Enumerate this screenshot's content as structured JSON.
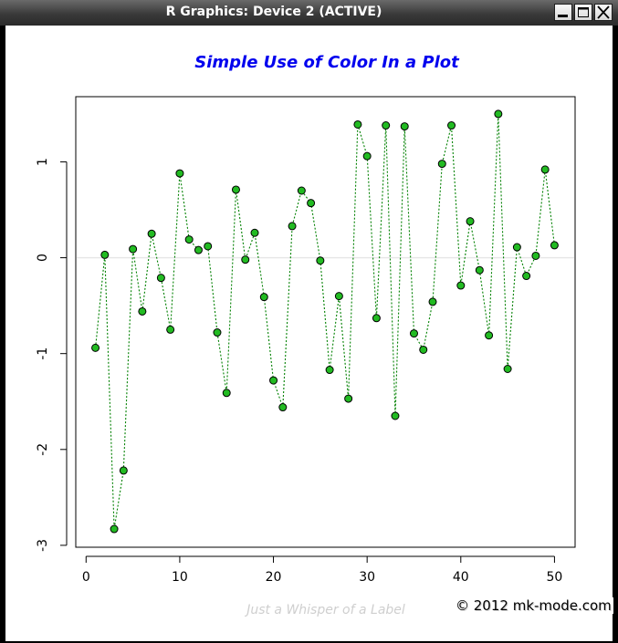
{
  "window": {
    "title": "R Graphics: Device 2 (ACTIVE)",
    "buttons": [
      "minimize",
      "maximize",
      "close"
    ]
  },
  "watermark": "© 2012 mk-mode.com",
  "colors": {
    "title": "#0000ee",
    "xlabel": "#cfcfcf",
    "line": "#008000",
    "point_fill": "#22bb22",
    "point_border": "#000000",
    "hline": "#e6e6e6"
  },
  "chart_data": {
    "type": "line",
    "title": "Simple Use of Color In a Plot",
    "xlabel": "Just a Whisper of a Label",
    "ylabel": "",
    "xlim": [
      -1.1,
      52.2
    ],
    "ylim": [
      -3.02,
      1.68
    ],
    "xticks": [
      0,
      10,
      20,
      30,
      40,
      50
    ],
    "yticks": [
      -3,
      -2,
      -1,
      0,
      1
    ],
    "hline": 0,
    "line_style": "dotted",
    "marker": "filled-circle",
    "series": [
      {
        "x": [
          1,
          2,
          3,
          4,
          5,
          6,
          7,
          8,
          9,
          10,
          11,
          12,
          13,
          14,
          15,
          16,
          17,
          18,
          19,
          20,
          21,
          22,
          23,
          24,
          25,
          26,
          27,
          28,
          29,
          30,
          31,
          32,
          33,
          34,
          35,
          36,
          37,
          38,
          39,
          40,
          41,
          42,
          43,
          44,
          45,
          46,
          47,
          48,
          49,
          50
        ],
        "y": [
          -0.94,
          0.03,
          -2.83,
          -2.22,
          0.09,
          -0.56,
          0.25,
          -0.21,
          -0.75,
          0.88,
          0.19,
          0.08,
          0.12,
          -0.78,
          -1.41,
          0.71,
          -0.02,
          0.26,
          -0.41,
          -1.28,
          -1.56,
          0.33,
          0.7,
          0.57,
          -0.03,
          -1.17,
          -0.4,
          -1.47,
          1.39,
          1.06,
          -0.63,
          1.38,
          -1.65,
          1.37,
          -0.79,
          -0.96,
          -0.46,
          0.98,
          1.38,
          -0.29,
          0.38,
          -0.13,
          -0.81,
          1.5,
          -1.16,
          0.11,
          -0.19,
          0.02,
          0.92,
          0.13
        ]
      }
    ]
  }
}
